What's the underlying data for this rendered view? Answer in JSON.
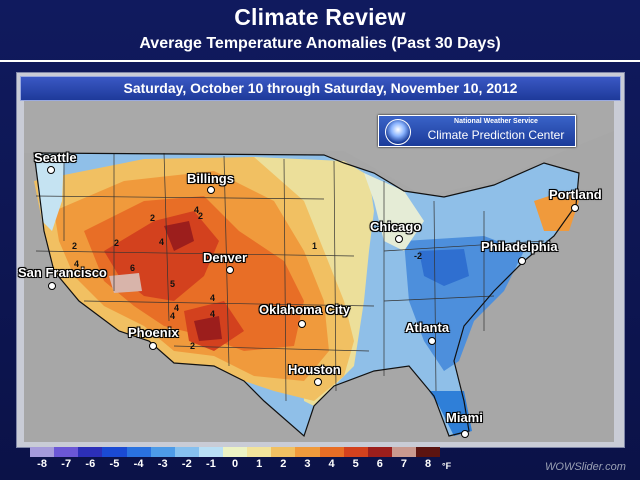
{
  "header": {
    "title": "Climate Review",
    "subtitle": "Average Temperature Anomalies (Past 30 Days)"
  },
  "date_range": "Saturday, October 10 through Saturday, November 10, 2012",
  "logo": {
    "line1": "National Weather Service",
    "line2": "Climate Prediction Center"
  },
  "cities": [
    {
      "name": "Seattle"
    },
    {
      "name": "Billings"
    },
    {
      "name": "Portland"
    },
    {
      "name": "Chicago"
    },
    {
      "name": "Philadelphia"
    },
    {
      "name": "San Francisco"
    },
    {
      "name": "Denver"
    },
    {
      "name": "Oklahoma City"
    },
    {
      "name": "Atlanta"
    },
    {
      "name": "Phoenix"
    },
    {
      "name": "Houston"
    },
    {
      "name": "Miami"
    }
  ],
  "contour_labels": [
    "2",
    "4",
    "4",
    "4",
    "2",
    "6",
    "2",
    "4",
    "4",
    "4",
    "2",
    "5",
    "4",
    "2",
    "-2",
    "1"
  ],
  "legend": {
    "values": [
      "-8",
      "-7",
      "-6",
      "-5",
      "-4",
      "-3",
      "-2",
      "-1",
      "0",
      "1",
      "2",
      "3",
      "4",
      "5",
      "6",
      "7",
      "8"
    ],
    "colors": [
      "#a59bdb",
      "#6b57d6",
      "#2c2fb8",
      "#1a4ad4",
      "#2a72e0",
      "#4d9be8",
      "#86c0ef",
      "#b9dff5",
      "#ecf2c4",
      "#f2e39c",
      "#f1c062",
      "#f09a3c",
      "#e86e26",
      "#d3411e",
      "#9c1e1c",
      "#c9998f",
      "#5c1410"
    ],
    "unit": "°F"
  },
  "watermark": "WOWSlider.com"
}
